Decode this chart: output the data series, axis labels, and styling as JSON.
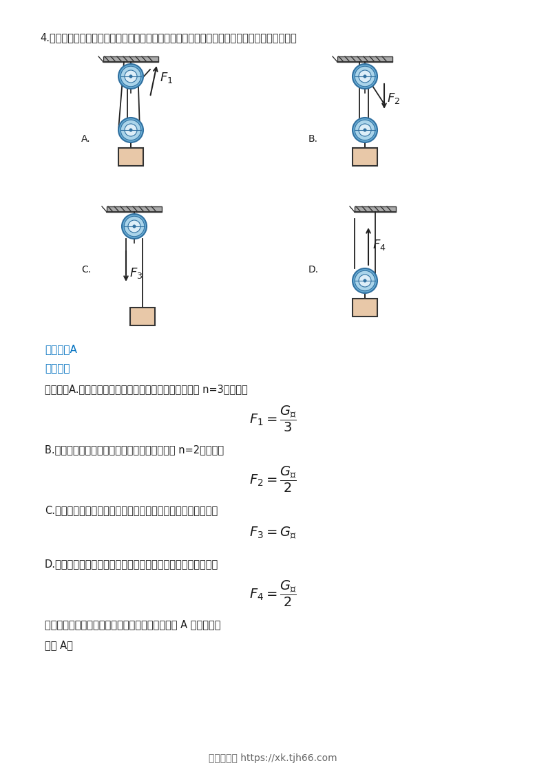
{
  "bg_color": "#ffffff",
  "page_width": 7.93,
  "page_height": 11.22,
  "question_text": "4.　分别使用图中四种装置匀速提升同一重物，不计滑轮重、绳重和摩擦，最省力的是（　　）",
  "label_A": "A.",
  "label_B": "B.",
  "label_C": "C.",
  "label_D": "D.",
  "answer_label": "「答案」A",
  "answer_bracket_open": "【",
  "answer_bracket_close": "】",
  "answer_inner": "答案",
  "answer_A": "A",
  "analysis_inner": "解析",
  "detail_A": "【详解】A.　不计滑轮重、绳重和摩擦，承重绳子的段数 n=3，则拉力",
  "detail_B": "B.　不计滑轮重、绳重和摩擦，承重绳子的段数 n=2，则拉力",
  "detail_C": "C.　定滑轮相当于等臂杠杆，不计滑轮重、绳重和摩擦，则拉力",
  "detail_D": "D.　动滑轮相当于省力杠杆，不计滑轮重、绳重和摩擦，则拉力",
  "conclusion": "综上，四种装置匀速提升同一重物，则最省力的是 A 中的装置。",
  "final": "故选 A。",
  "footer": "学习资料网 https://xk.tjh66.com",
  "answer_color": "#0070c0",
  "analysis_color": "#0070c0",
  "text_color": "#1a1a1a",
  "rope_color": "#222222",
  "pulley_outer": "#6aaed6",
  "pulley_mid": "#aad4ea",
  "pulley_inner": "#ddeef8",
  "pulley_edge": "#3070a0",
  "box_face": "#e8c8a8",
  "box_edge": "#333333",
  "hatch_color": "#444444",
  "ceil_color": "#333333"
}
